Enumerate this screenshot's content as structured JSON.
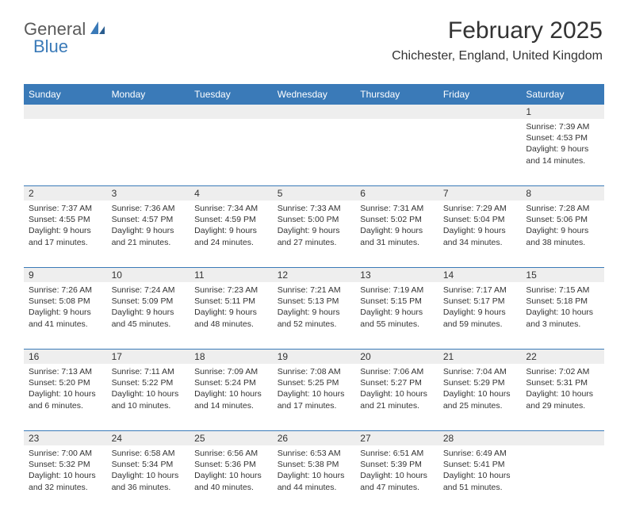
{
  "logo": {
    "part1": "General",
    "part2": "Blue"
  },
  "header": {
    "title": "February 2025",
    "location": "Chichester, England, United Kingdom"
  },
  "colors": {
    "header_bg": "#3a7ab8",
    "header_text": "#ffffff",
    "daynum_bg": "#eeeeee",
    "text": "#333333",
    "divider": "#3a7ab8",
    "logo_gray": "#5a5a5a",
    "logo_blue": "#3a7ab8"
  },
  "dayNames": [
    "Sunday",
    "Monday",
    "Tuesday",
    "Wednesday",
    "Thursday",
    "Friday",
    "Saturday"
  ],
  "weeks": [
    [
      {
        "n": "",
        "sr": "",
        "ss": "",
        "dl": ""
      },
      {
        "n": "",
        "sr": "",
        "ss": "",
        "dl": ""
      },
      {
        "n": "",
        "sr": "",
        "ss": "",
        "dl": ""
      },
      {
        "n": "",
        "sr": "",
        "ss": "",
        "dl": ""
      },
      {
        "n": "",
        "sr": "",
        "ss": "",
        "dl": ""
      },
      {
        "n": "",
        "sr": "",
        "ss": "",
        "dl": ""
      },
      {
        "n": "1",
        "sr": "Sunrise: 7:39 AM",
        "ss": "Sunset: 4:53 PM",
        "dl": "Daylight: 9 hours and 14 minutes."
      }
    ],
    [
      {
        "n": "2",
        "sr": "Sunrise: 7:37 AM",
        "ss": "Sunset: 4:55 PM",
        "dl": "Daylight: 9 hours and 17 minutes."
      },
      {
        "n": "3",
        "sr": "Sunrise: 7:36 AM",
        "ss": "Sunset: 4:57 PM",
        "dl": "Daylight: 9 hours and 21 minutes."
      },
      {
        "n": "4",
        "sr": "Sunrise: 7:34 AM",
        "ss": "Sunset: 4:59 PM",
        "dl": "Daylight: 9 hours and 24 minutes."
      },
      {
        "n": "5",
        "sr": "Sunrise: 7:33 AM",
        "ss": "Sunset: 5:00 PM",
        "dl": "Daylight: 9 hours and 27 minutes."
      },
      {
        "n": "6",
        "sr": "Sunrise: 7:31 AM",
        "ss": "Sunset: 5:02 PM",
        "dl": "Daylight: 9 hours and 31 minutes."
      },
      {
        "n": "7",
        "sr": "Sunrise: 7:29 AM",
        "ss": "Sunset: 5:04 PM",
        "dl": "Daylight: 9 hours and 34 minutes."
      },
      {
        "n": "8",
        "sr": "Sunrise: 7:28 AM",
        "ss": "Sunset: 5:06 PM",
        "dl": "Daylight: 9 hours and 38 minutes."
      }
    ],
    [
      {
        "n": "9",
        "sr": "Sunrise: 7:26 AM",
        "ss": "Sunset: 5:08 PM",
        "dl": "Daylight: 9 hours and 41 minutes."
      },
      {
        "n": "10",
        "sr": "Sunrise: 7:24 AM",
        "ss": "Sunset: 5:09 PM",
        "dl": "Daylight: 9 hours and 45 minutes."
      },
      {
        "n": "11",
        "sr": "Sunrise: 7:23 AM",
        "ss": "Sunset: 5:11 PM",
        "dl": "Daylight: 9 hours and 48 minutes."
      },
      {
        "n": "12",
        "sr": "Sunrise: 7:21 AM",
        "ss": "Sunset: 5:13 PM",
        "dl": "Daylight: 9 hours and 52 minutes."
      },
      {
        "n": "13",
        "sr": "Sunrise: 7:19 AM",
        "ss": "Sunset: 5:15 PM",
        "dl": "Daylight: 9 hours and 55 minutes."
      },
      {
        "n": "14",
        "sr": "Sunrise: 7:17 AM",
        "ss": "Sunset: 5:17 PM",
        "dl": "Daylight: 9 hours and 59 minutes."
      },
      {
        "n": "15",
        "sr": "Sunrise: 7:15 AM",
        "ss": "Sunset: 5:18 PM",
        "dl": "Daylight: 10 hours and 3 minutes."
      }
    ],
    [
      {
        "n": "16",
        "sr": "Sunrise: 7:13 AM",
        "ss": "Sunset: 5:20 PM",
        "dl": "Daylight: 10 hours and 6 minutes."
      },
      {
        "n": "17",
        "sr": "Sunrise: 7:11 AM",
        "ss": "Sunset: 5:22 PM",
        "dl": "Daylight: 10 hours and 10 minutes."
      },
      {
        "n": "18",
        "sr": "Sunrise: 7:09 AM",
        "ss": "Sunset: 5:24 PM",
        "dl": "Daylight: 10 hours and 14 minutes."
      },
      {
        "n": "19",
        "sr": "Sunrise: 7:08 AM",
        "ss": "Sunset: 5:25 PM",
        "dl": "Daylight: 10 hours and 17 minutes."
      },
      {
        "n": "20",
        "sr": "Sunrise: 7:06 AM",
        "ss": "Sunset: 5:27 PM",
        "dl": "Daylight: 10 hours and 21 minutes."
      },
      {
        "n": "21",
        "sr": "Sunrise: 7:04 AM",
        "ss": "Sunset: 5:29 PM",
        "dl": "Daylight: 10 hours and 25 minutes."
      },
      {
        "n": "22",
        "sr": "Sunrise: 7:02 AM",
        "ss": "Sunset: 5:31 PM",
        "dl": "Daylight: 10 hours and 29 minutes."
      }
    ],
    [
      {
        "n": "23",
        "sr": "Sunrise: 7:00 AM",
        "ss": "Sunset: 5:32 PM",
        "dl": "Daylight: 10 hours and 32 minutes."
      },
      {
        "n": "24",
        "sr": "Sunrise: 6:58 AM",
        "ss": "Sunset: 5:34 PM",
        "dl": "Daylight: 10 hours and 36 minutes."
      },
      {
        "n": "25",
        "sr": "Sunrise: 6:56 AM",
        "ss": "Sunset: 5:36 PM",
        "dl": "Daylight: 10 hours and 40 minutes."
      },
      {
        "n": "26",
        "sr": "Sunrise: 6:53 AM",
        "ss": "Sunset: 5:38 PM",
        "dl": "Daylight: 10 hours and 44 minutes."
      },
      {
        "n": "27",
        "sr": "Sunrise: 6:51 AM",
        "ss": "Sunset: 5:39 PM",
        "dl": "Daylight: 10 hours and 47 minutes."
      },
      {
        "n": "28",
        "sr": "Sunrise: 6:49 AM",
        "ss": "Sunset: 5:41 PM",
        "dl": "Daylight: 10 hours and 51 minutes."
      },
      {
        "n": "",
        "sr": "",
        "ss": "",
        "dl": ""
      }
    ]
  ]
}
